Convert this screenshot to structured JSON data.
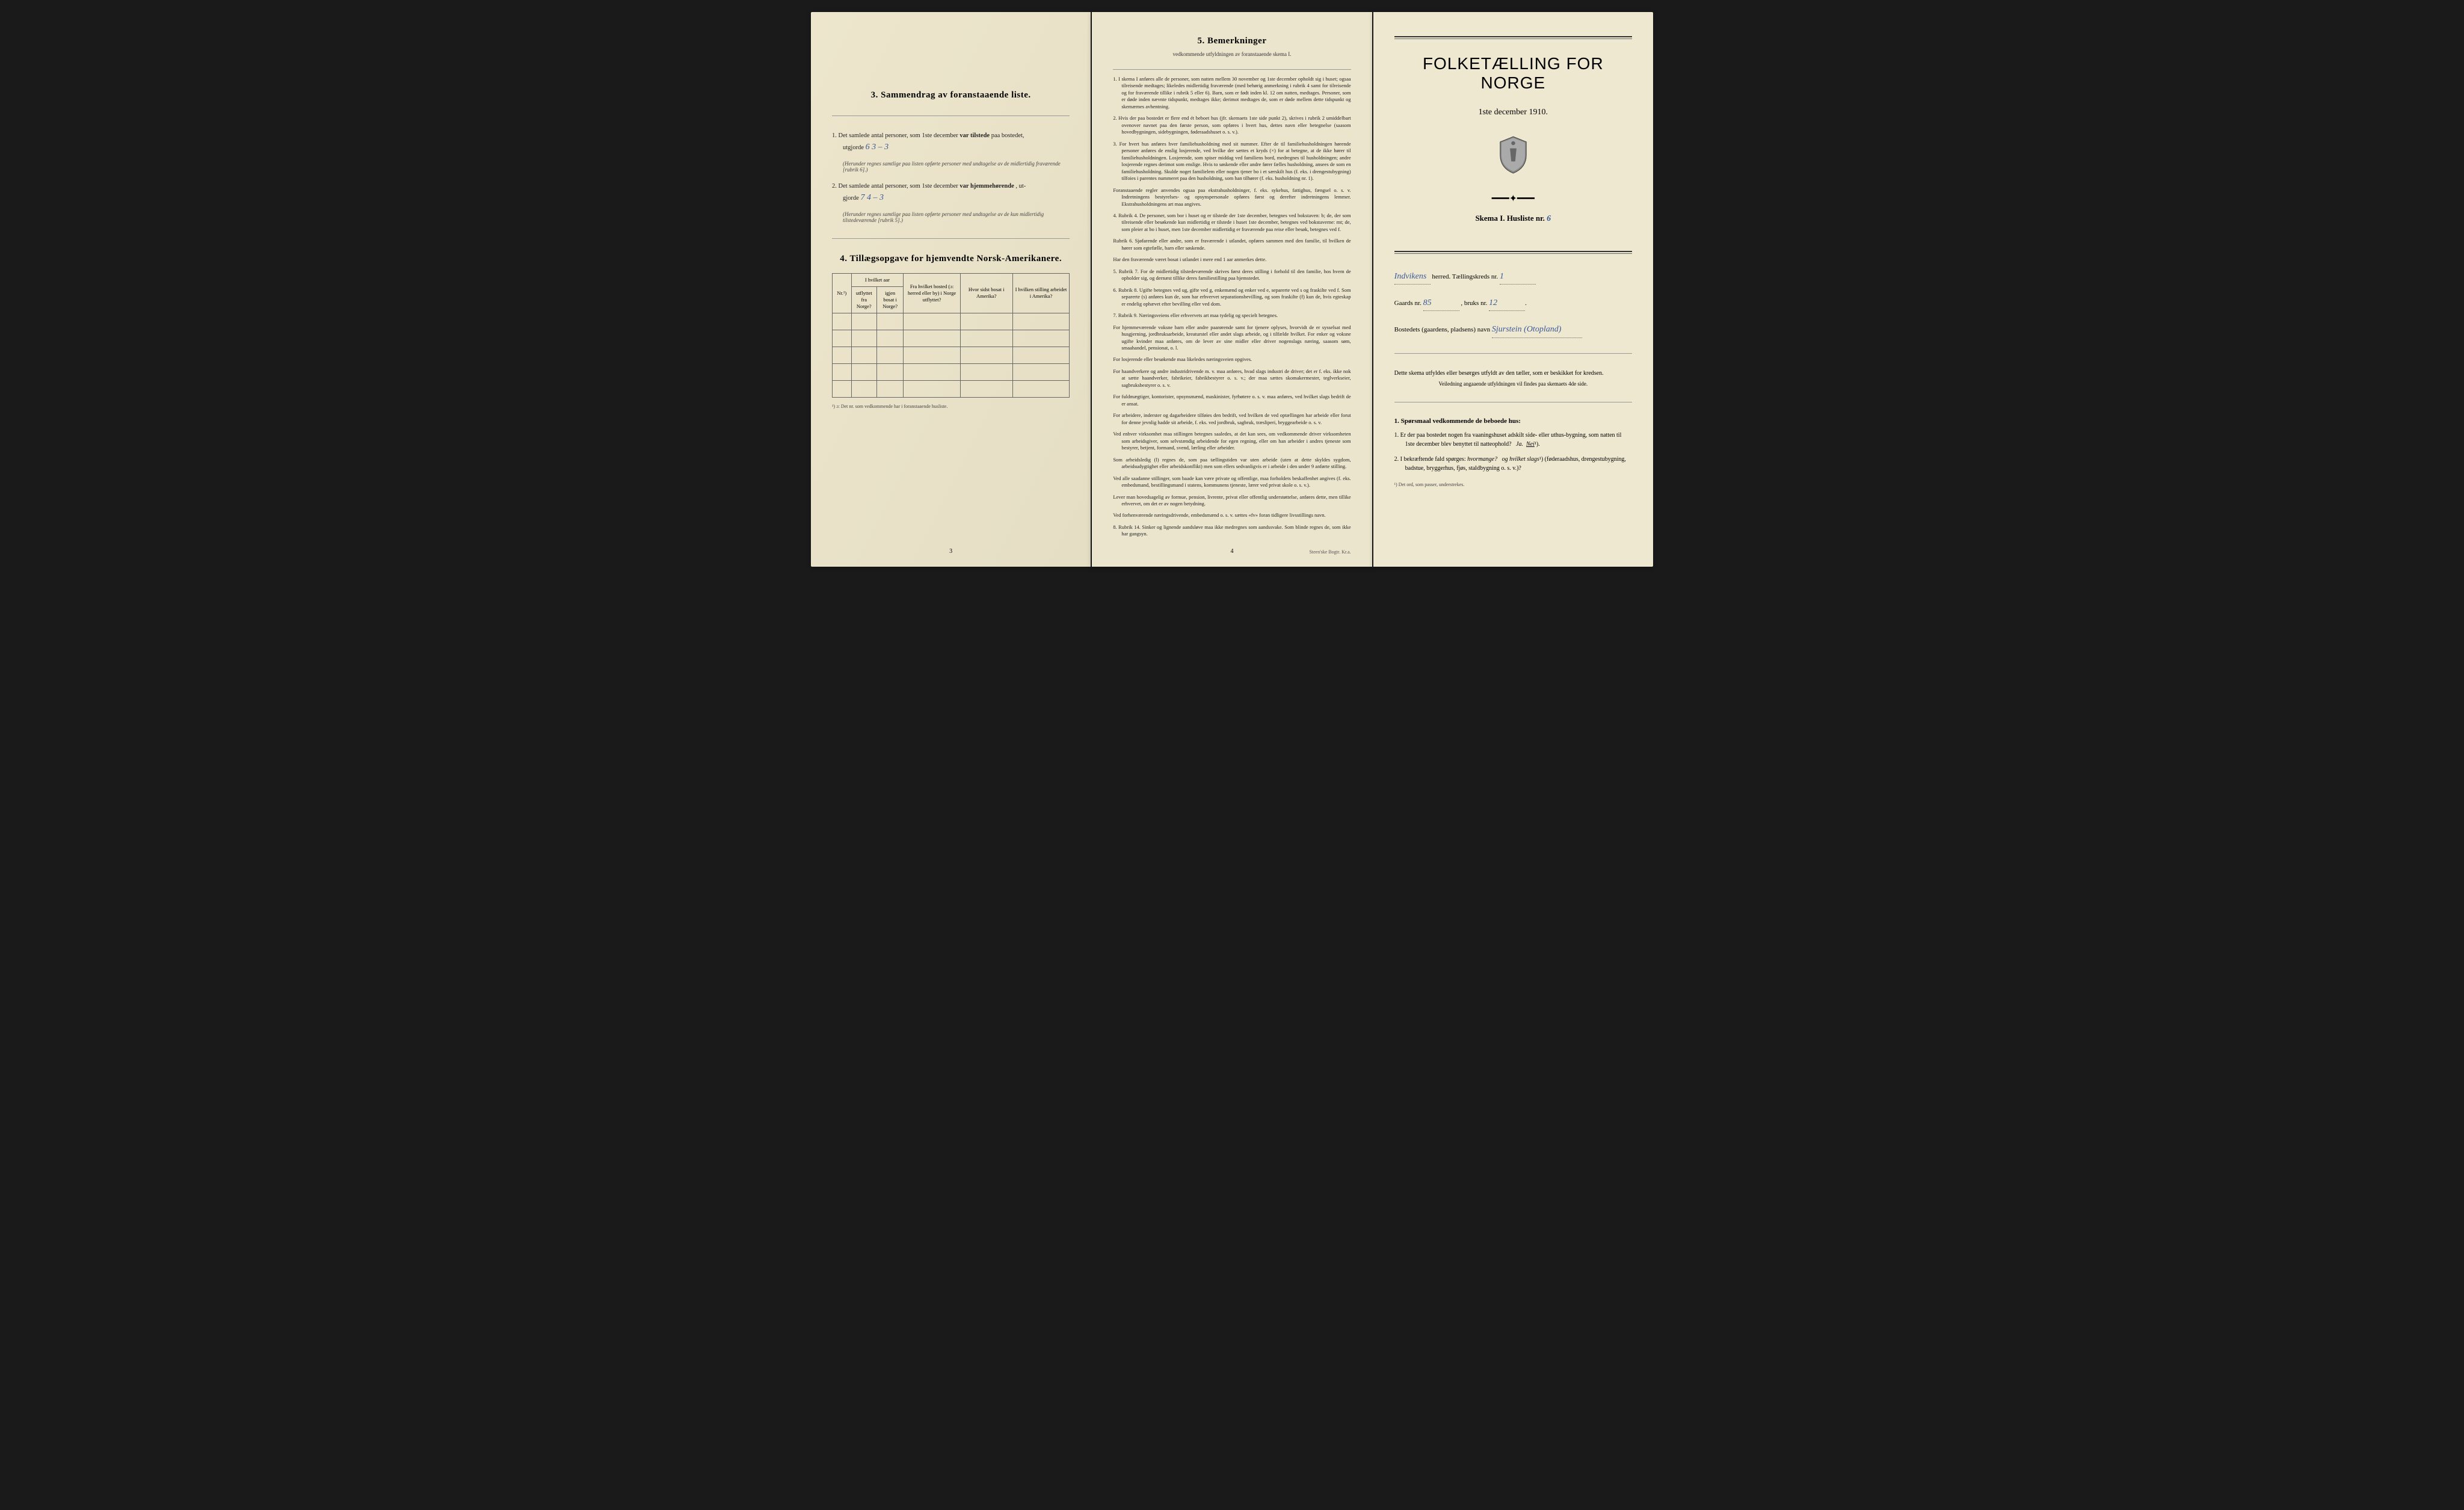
{
  "page_left": {
    "section3": {
      "title": "3.   Sammendrag av foranstaaende liste.",
      "item1_prefix": "1.  Det samlede antal personer, som 1ste december",
      "item1_bold": "var tilstede",
      "item1_suffix": "paa bostedet,",
      "item1_line2": "utgjorde",
      "item1_handwritten": "6    3 – 3",
      "item1_note": "(Herunder regnes samtlige paa listen opførte personer med undtagelse av de midlertidig fraværende [rubrik 6].)",
      "item2_prefix": "2.  Det samlede antal personer, som 1ste december",
      "item2_bold": "var hjemmehørende",
      "item2_suffix": ", ut-",
      "item2_line2": "gjorde",
      "item2_handwritten": "7    4 – 3",
      "item2_note": "(Herunder regnes samtlige paa listen opførte personer med undtagelse av de kun midlertidig tilstedeværende [rubrik 5].)"
    },
    "section4": {
      "title": "4.   Tillægsopgave for hjemvendte Norsk-Amerikanere.",
      "headers": {
        "col1": "Nr.¹)",
        "col2_top": "I hvilket aar",
        "col2_sub1": "utflyttet fra Norge?",
        "col2_sub2": "igjen bosat i Norge?",
        "col3": "Fra hvilket bosted (ɔ: herred eller by) i Norge utflyttet?",
        "col4": "Hvor sidst bosat i Amerika?",
        "col5": "I hvilken stilling arbeidet i Amerika?"
      },
      "footnote": "¹) ɔ: Det nr. som vedkommende har i foranstaaende husliste.",
      "blank_rows": 5
    },
    "page_num": "3"
  },
  "page_middle": {
    "section5": {
      "title": "5.   Bemerkninger",
      "subtitle": "vedkommende utfyldningen av foranstaaende skema I."
    },
    "remarks": [
      {
        "num": "1.",
        "text": "I skema I anføres alle de personer, som natten mellem 30 november og 1ste december opholdt sig i huset; ogsaa tilreisende medtages; likeledes midlertidig fraværende (med behørig anmerkning i rubrik 4 samt for tilreisende og for fraværende tillike i rubrik 5 eller 6). Barn, som er født inden kl. 12 om natten, medtages. Personer, som er døde inden nævnte tidspunkt, medtages ikke; derimot medtages de, som er døde mellem dette tidspunkt og skemærnes avhentning."
      },
      {
        "num": "2.",
        "text": "Hvis der paa bostedet er flere end ét beboet hus (jfr. skemaets 1ste side punkt 2), skrives i rubrik 2 umiddelbart ovenover navnet paa den første person, som opføres i hvert hus, dettes navn eller betegnelse (saasom hovedbygningen, sidebygningen, føderaadshuset o. s. v.)."
      },
      {
        "num": "3.",
        "text": "For hvert hus anføres hver familiehusholdning med sit nummer. Efter de til familiehusholdningen hørende personer anføres de enslig losjerende, ved hvilke der sættes et kryds (×) for at betegne, at de ikke hører til familiehusholdningen. Losjerende, som spiser middag ved familiens bord, medregnes til husholdningen; andre losjerende regnes derimot som enslige. Hvis to søskende eller andre fører fælles husholdning, ansees de som en familiehusholdning. Skulde noget familielem eller nogen tjener bo i et særskilt hus (f. eks. i drengestubygning) tilfoies i parentes nummeret paa den husholdning, som han tilhører (f. eks. husholdning nr. 1)."
      },
      {
        "sub": true,
        "text": "Foranstaaende regler anvendes ogsaa paa ekstrahusholdninger, f. eks. sykehus, fattighus, fængsel o. s. v. Indretningens bestyrelses- og opsynspersonale opføres først og derefter indretningens lemmer. Ekstrahusholdningens art maa angives."
      },
      {
        "num": "4.",
        "text": "Rubrik 4. De personer, som bor i huset og er tilstede der 1ste december, betegnes ved bokstaven: b; de, der som tilreisende eller besøkende kun midlertidig er tilstede i huset 1ste december, betegnes ved bokstaverne: mt; de, som pleier at bo i huset, men 1ste december midlertidig er fraværende paa reise eller besøk, betegnes ved f."
      },
      {
        "sub": true,
        "text": "Rubrik 6. Sjøfarende eller andre, som er fraværende i utlandet, opføres sammen med den familie, til hvilken de hører som egtefælle, barn eller søskende."
      },
      {
        "sub": true,
        "text": "Har den fraværende været bosat i utlandet i mere end 1 aar anmerkes dette."
      },
      {
        "num": "5.",
        "text": "Rubrik 7. For de midlertidig tilstedeværende skrives først deres stilling i forhold til den familie, hos hvem de opholder sig, og dernæst tillike deres familiestilling paa hjemstedet."
      },
      {
        "num": "6.",
        "text": "Rubrik 8. Ugifte betegnes ved ug, gifte ved g, enkemænd og enker ved e, separerte ved s og fraskilte ved f. Som separerte (s) anføres kun de, som har erhvervet separationsbevilling, og som fraskilte (f) kun de, hvis egteskap er endelig ophævet efter bevilling eller ved dom."
      },
      {
        "num": "7.",
        "text": "Rubrik 9. Næringsveiens eller erhvervets art maa tydelig og specielt betegnes."
      },
      {
        "sub": true,
        "text": "For hjemmeværende voksne barn eller andre paarørende samt for tjenere oplyses, hvorvidt de er sysselsat med husgjerning, jordbruksarbeide, kreaturstel eller andet slags arbeide, og i tilfælde hvilket. For enker og voksne ugifte kvinder maa anføres, om de lever av sine midler eller driver nogenslags næring, saasom søm, smaahandel, pensionat, o. l."
      },
      {
        "sub": true,
        "text": "For losjerende eller besøkende maa likeledes næringsveien opgives."
      },
      {
        "sub": true,
        "text": "For haandverkere og andre industridrivende m. v. maa anføres, hvad slags industri de driver; det er f. eks. ikke nok at sætte haandverker, fabrikeier, fabrikbestyrer o. s. v.; der maa sættes skomakermester, teglverkseier, sagbruksbestyrer o. s. v."
      },
      {
        "sub": true,
        "text": "For fuldmægtiger, kontorister, opsynsmænd, maskinister, fyrbøtere o. s. v. maa anføres, ved hvilket slags bedrift de er ansat."
      },
      {
        "sub": true,
        "text": "For arbeidere, inderster og dagarbeidere tilføies den bedrift, ved hvilken de ved optællingen har arbeide eller forut for denne jevnlig hadde sit arbeide, f. eks. ved jordbruk, sagbruk, træsliperi, bryggearbeide o. s. v."
      },
      {
        "sub": true,
        "text": "Ved enhver virksomhet maa stillingen betegnes saaledes, at det kan sees, om vedkommende driver virksomheten som arbeidsgiver, som selvstændig arbeidende for egen regning, eller om han arbeider i andres tjeneste som bestyrer, betjent, formand, svend, lærling eller arbeider."
      },
      {
        "sub": true,
        "text": "Som arbeidsledig (l) regnes de, som paa tællingstiden var uten arbeide (uten at dette skyldes sygdom, arbeidsudygtighet eller arbeidskonflikt) men som ellers sedvanligvis er i arbeide i den under 9 anførte stilling."
      },
      {
        "sub": true,
        "text": "Ved alle saadanne stillinger, som baade kan være private og offentlige, maa forholdets beskaffenhet angives (f. eks. embedsmand, bestillingsmand i statens, kommunens tjeneste, lærer ved privat skole o. s. v.)."
      },
      {
        "sub": true,
        "text": "Lever man hovedsagelig av formue, pension, livrente, privat eller offentlig understøttelse, anføres dette, men tillike erhvervet, om det er av nogen betydning."
      },
      {
        "sub": true,
        "text": "Ved forhenværende næringsdrivende, embedsmænd o. s. v. sættes «fv» foran tidligere livsstillings navn."
      },
      {
        "num": "8.",
        "text": "Rubrik 14. Sinker og lignende aandsløve maa ikke medregnes som aandssvake. Som blinde regnes de, som ikke har gangsyn."
      }
    ],
    "page_num": "4",
    "printer": "Steen'ske Bogtr. Kr.a."
  },
  "page_right": {
    "main_title": "FOLKETÆLLING FOR NORGE",
    "main_subtitle": "1ste december 1910.",
    "skema_label": "Skema I.   Husliste nr.",
    "skema_handwritten": "6",
    "herred_handwritten": "Indvikens",
    "herred_label": "herred.   Tællingskreds nr.",
    "kreds_handwritten": "1",
    "gaard_label": "Gaards nr.",
    "gaard_handwritten": "85",
    "bruks_label": ", bruks nr.",
    "bruks_handwritten": "12",
    "bosted_label": "Bostedets (gaardens, pladsens) navn",
    "bosted_handwritten": "Sjurstein (Otopland)",
    "instruction": "Dette skema utfyldes eller besørges utfyldt av den tæller, som er beskikket for kredsen.",
    "instruction_note": "Veiledning angaaende utfyldningen vil findes paa skemaets 4de side.",
    "question_header": "1. Spørsmaal vedkommende de beboede hus:",
    "q1_num": "1.",
    "q1_text": "Er der paa bostedet nogen fra vaaningshuset adskilt side- eller uthus-bygning, som natten til 1ste december blev benyttet til natteophold?",
    "q1_ja": "Ja.",
    "q1_nei": "Nei",
    "q2_num": "2.",
    "q2_text_a": "I bekræftende fald spørges:",
    "q2_text_b": "hvormange?",
    "q2_text_c": "og hvilket slags",
    "q2_text_d": "(føderaadshus, drengestubygning, badstue, bryggerhus, fjøs, staldbygning o. s. v.)?",
    "footnote": "¹) Det ord, som passer, understrekes."
  },
  "styling": {
    "background": "#ebe4ca",
    "text_color": "#222222",
    "handwritten_color": "#3b5998",
    "border_color": "#666666"
  }
}
